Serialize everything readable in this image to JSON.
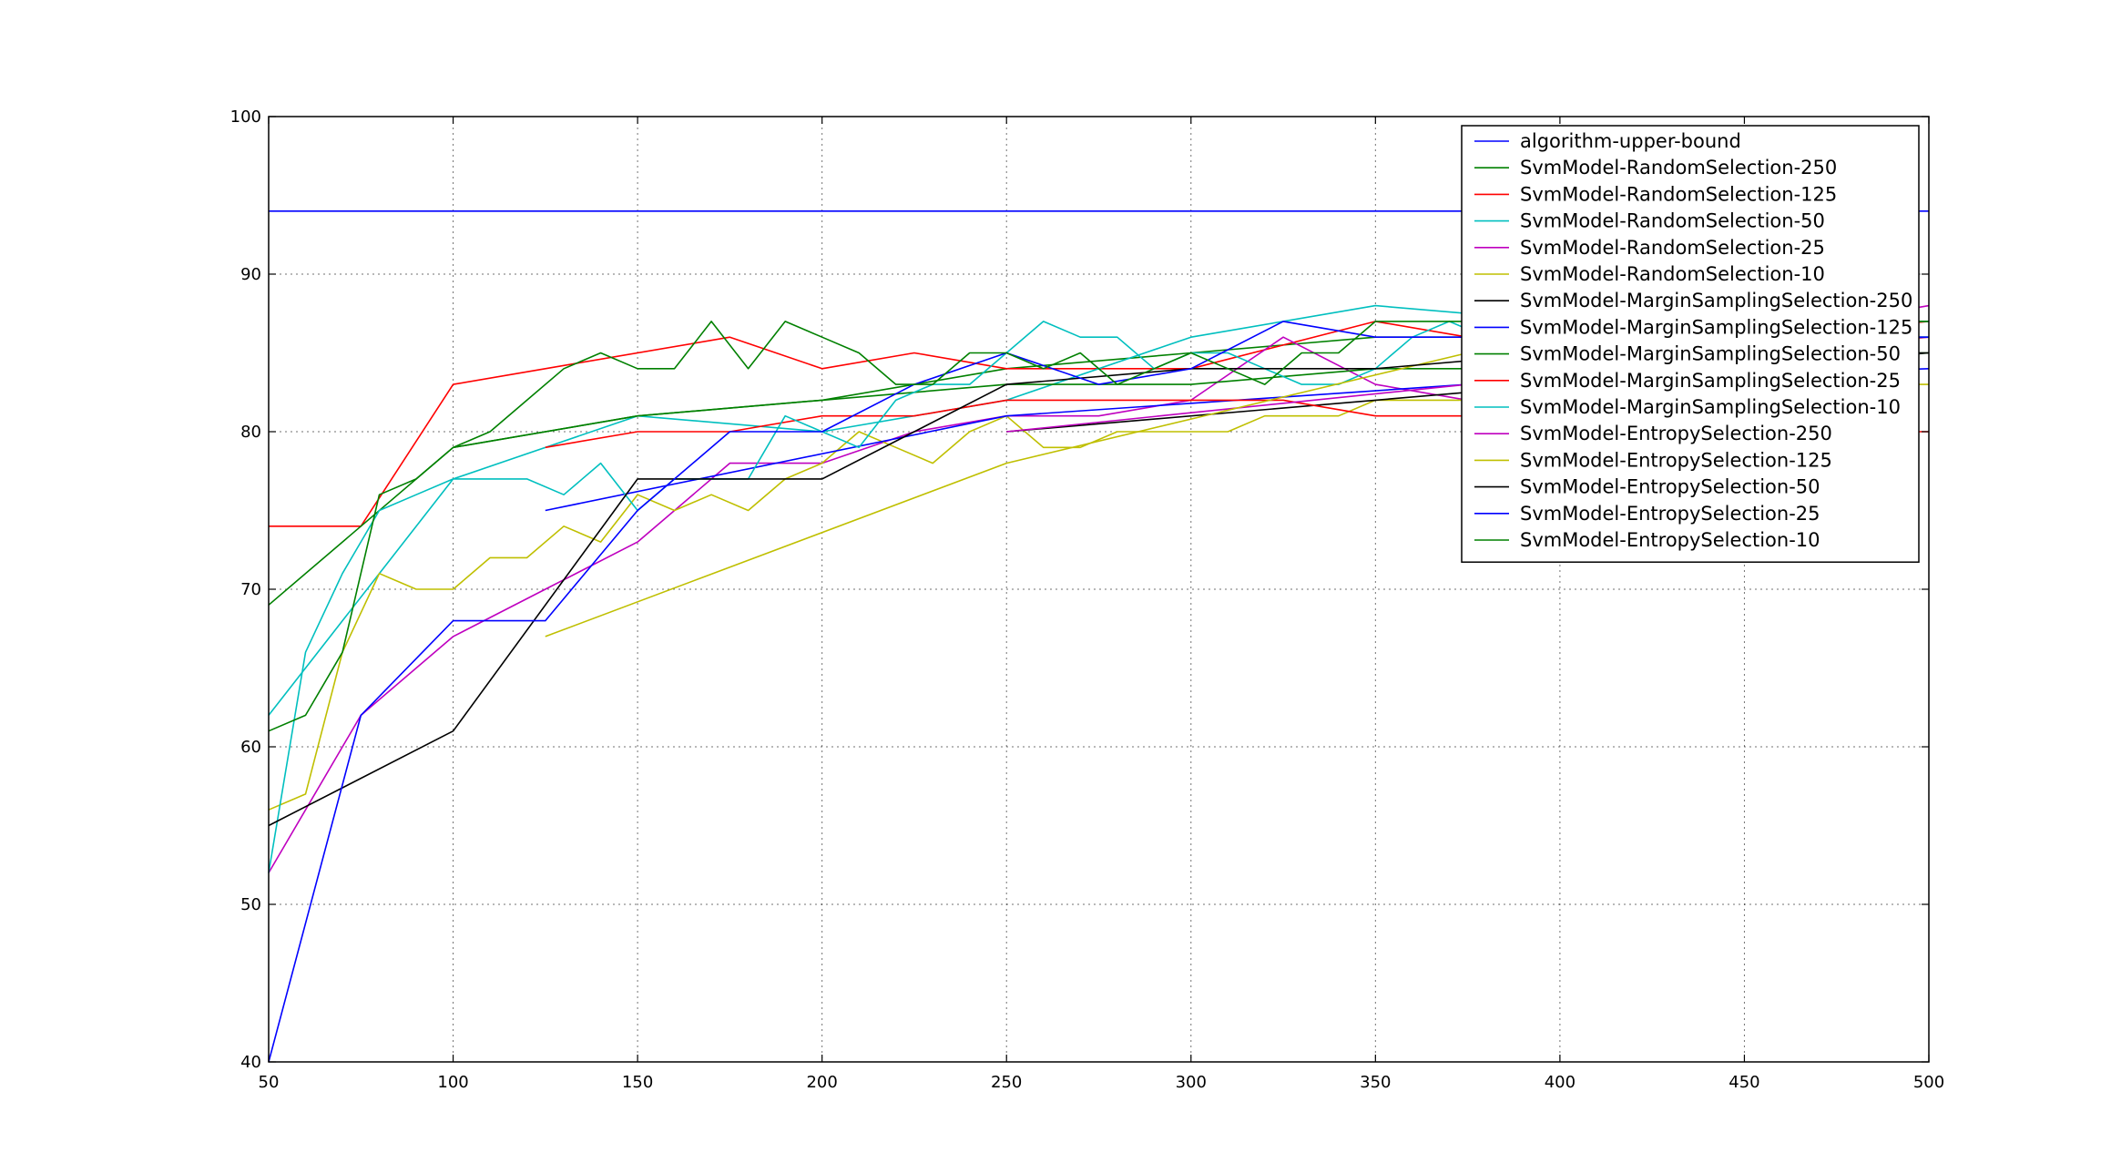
{
  "chart_data": {
    "type": "line",
    "title": "",
    "xlabel": "",
    "ylabel": "",
    "xlim": [
      50,
      500
    ],
    "ylim": [
      40,
      100
    ],
    "xticks": [
      50,
      100,
      150,
      200,
      250,
      300,
      350,
      400,
      450,
      500
    ],
    "yticks": [
      40,
      50,
      60,
      70,
      80,
      90,
      100
    ],
    "grid": true,
    "legend_position": "top-right",
    "series": [
      {
        "name": "algorithm-upper-bound",
        "color": "#0000ff",
        "x": [
          50,
          500
        ],
        "y": [
          94,
          94
        ]
      },
      {
        "name": "SvmModel-RandomSelection-250",
        "color": "#008000",
        "x": [
          100,
          150,
          200,
          250,
          300,
          350,
          400,
          450,
          500
        ],
        "y": [
          79,
          81,
          82,
          84,
          85,
          86,
          86,
          86,
          86
        ]
      },
      {
        "name": "SvmModel-RandomSelection-125",
        "color": "#ff0000",
        "x": [
          50,
          75,
          100,
          125,
          175,
          200,
          225,
          250,
          300,
          350,
          375,
          400,
          425,
          450,
          500
        ],
        "y": [
          74,
          74,
          83,
          84,
          86,
          84,
          85,
          84,
          84,
          87,
          86,
          86,
          86,
          86,
          87
        ]
      },
      {
        "name": "SvmModel-RandomSelection-50",
        "color": "#00bfbf",
        "x": [
          50,
          100,
          150,
          200,
          250,
          300,
          350,
          400,
          450,
          500
        ],
        "y": [
          62,
          77,
          81,
          80,
          82,
          86,
          88,
          87,
          87,
          87
        ]
      },
      {
        "name": "SvmModel-RandomSelection-25",
        "color": "#bf00bf",
        "x": [
          50,
          75,
          100,
          125,
          150,
          175,
          200,
          225,
          250,
          275,
          300,
          325,
          350,
          375,
          400,
          425,
          450,
          475,
          500
        ],
        "y": [
          52,
          62,
          67,
          70,
          73,
          78,
          78,
          80,
          81,
          81,
          82,
          86,
          83,
          82,
          83,
          86,
          86,
          87,
          88
        ]
      },
      {
        "name": "SvmModel-RandomSelection-10",
        "color": "#bfbf00",
        "x": [
          50,
          60,
          70,
          80,
          90,
          100,
          110,
          120,
          130,
          140,
          150,
          160,
          170,
          180,
          190,
          200,
          210,
          220,
          230,
          240,
          250,
          260,
          270,
          280,
          290,
          300,
          310,
          320,
          330,
          340,
          350,
          360,
          370,
          380,
          390,
          400,
          410,
          420,
          430,
          440,
          450,
          460,
          470,
          480,
          490,
          500
        ],
        "y": [
          56,
          57,
          66,
          71,
          70,
          70,
          72,
          72,
          74,
          73,
          76,
          75,
          76,
          75,
          77,
          78,
          80,
          79,
          78,
          80,
          81,
          79,
          79,
          80,
          80,
          80,
          80,
          81,
          81,
          81,
          82,
          82,
          82,
          82,
          82,
          82,
          82,
          82,
          82,
          82,
          83,
          83,
          83,
          83,
          83,
          83
        ]
      },
      {
        "name": "SvmModel-MarginSamplingSelection-250",
        "color": "#000000",
        "x": [
          250,
          500
        ],
        "y": [
          80,
          85
        ]
      },
      {
        "name": "SvmModel-MarginSamplingSelection-125",
        "color": "#0000ff",
        "x": [
          125,
          250,
          375,
          500
        ],
        "y": [
          75,
          81,
          83,
          84
        ]
      },
      {
        "name": "SvmModel-MarginSamplingSelection-50",
        "color": "#008000",
        "x": [
          50,
          100,
          150,
          200,
          250,
          300,
          350,
          400,
          450,
          500
        ],
        "y": [
          69,
          79,
          81,
          82,
          83,
          83,
          84,
          84,
          85,
          85
        ]
      },
      {
        "name": "SvmModel-MarginSamplingSelection-25",
        "color": "#ff0000",
        "x": [
          125,
          150,
          175,
          200,
          225,
          250,
          275,
          300,
          325,
          350,
          375,
          400,
          425,
          450,
          475,
          500
        ],
        "y": [
          79,
          80,
          80,
          81,
          81,
          82,
          82,
          82,
          82,
          81,
          81,
          80,
          80,
          80,
          80,
          80
        ]
      },
      {
        "name": "SvmModel-MarginSamplingSelection-10",
        "color": "#00bfbf",
        "x": [
          50,
          60,
          70,
          80,
          90,
          100,
          110,
          120,
          130,
          140,
          150,
          160,
          170,
          180,
          190,
          200,
          210,
          220,
          230,
          240,
          250,
          260,
          270,
          280,
          290,
          300,
          310,
          320,
          330,
          340,
          350,
          360,
          370,
          380,
          390,
          400,
          410,
          420,
          430,
          440,
          450,
          460,
          470,
          480,
          490,
          500
        ],
        "y": [
          52,
          66,
          71,
          75,
          76,
          77,
          77,
          77,
          76,
          78,
          75,
          77,
          77,
          77,
          81,
          80,
          79,
          82,
          83,
          83,
          85,
          87,
          86,
          86,
          84,
          85,
          85,
          84,
          83,
          83,
          84,
          86,
          87,
          86,
          86,
          86,
          86,
          86,
          86,
          86,
          86,
          86,
          86,
          86,
          86,
          86
        ]
      },
      {
        "name": "SvmModel-EntropySelection-250",
        "color": "#bf00bf",
        "x": [
          250,
          500
        ],
        "y": [
          80,
          86
        ]
      },
      {
        "name": "SvmModel-EntropySelection-125",
        "color": "#bfbf00",
        "x": [
          125,
          250,
          375,
          500
        ],
        "y": [
          67,
          78,
          85,
          86
        ]
      },
      {
        "name": "SvmModel-EntropySelection-50",
        "color": "#000000",
        "x": [
          50,
          100,
          150,
          200,
          250,
          300,
          350,
          400,
          450,
          500
        ],
        "y": [
          55,
          61,
          77,
          77,
          83,
          84,
          84,
          85,
          85,
          85
        ]
      },
      {
        "name": "SvmModel-EntropySelection-25",
        "color": "#0000ff",
        "x": [
          50,
          75,
          100,
          125,
          150,
          175,
          200,
          225,
          250,
          275,
          300,
          325,
          350,
          375,
          400,
          425,
          450,
          475,
          500
        ],
        "y": [
          40,
          62,
          68,
          68,
          75,
          80,
          80,
          83,
          85,
          83,
          84,
          87,
          86,
          86,
          86,
          86,
          86,
          86,
          86
        ]
      },
      {
        "name": "SvmModel-EntropySelection-10",
        "color": "#008000",
        "x": [
          50,
          60,
          70,
          80,
          90,
          100,
          110,
          120,
          130,
          140,
          150,
          160,
          170,
          180,
          190,
          200,
          210,
          220,
          230,
          240,
          250,
          260,
          270,
          280,
          290,
          300,
          310,
          320,
          330,
          340,
          350,
          360,
          370,
          380,
          390,
          400,
          410,
          420,
          430,
          440,
          450,
          460,
          470,
          480,
          490,
          500
        ],
        "y": [
          61,
          62,
          66,
          76,
          77,
          79,
          80,
          82,
          84,
          85,
          84,
          84,
          87,
          84,
          87,
          86,
          85,
          83,
          83,
          85,
          85,
          84,
          85,
          83,
          84,
          85,
          84,
          83,
          85,
          85,
          87,
          87,
          87,
          87,
          87,
          87,
          87,
          87,
          87,
          87,
          87,
          87,
          87,
          87,
          87,
          87
        ]
      }
    ]
  }
}
